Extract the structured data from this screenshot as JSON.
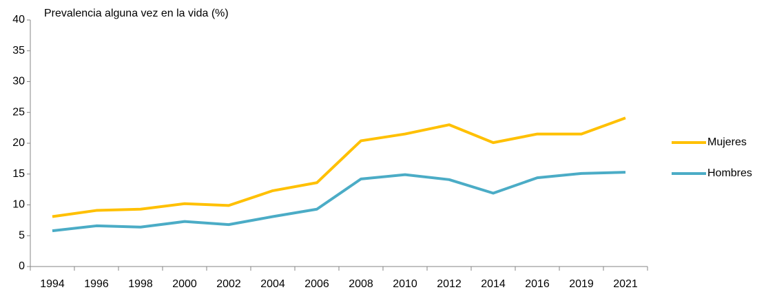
{
  "chart_data": {
    "type": "line",
    "title": "Prevalencia alguna vez en la vida (%)",
    "categories": [
      "1994",
      "1996",
      "1998",
      "2000",
      "2002",
      "2004",
      "2006",
      "2008",
      "2010",
      "2012",
      "2014",
      "2016",
      "2019",
      "2021"
    ],
    "series": [
      {
        "name": "Mujeres",
        "color": "#FFC000",
        "values": [
          8.1,
          9.1,
          9.3,
          10.2,
          9.9,
          12.3,
          13.6,
          20.4,
          21.5,
          23.0,
          20.1,
          21.5,
          21.5,
          24.1
        ]
      },
      {
        "name": "Hombres",
        "color": "#4BACC6",
        "values": [
          5.8,
          6.6,
          6.4,
          7.3,
          6.8,
          8.1,
          9.3,
          14.2,
          14.9,
          14.1,
          11.9,
          14.4,
          15.1,
          15.3
        ]
      }
    ],
    "ylim": [
      0,
      40
    ],
    "yticks": [
      0,
      5,
      10,
      15,
      20,
      25,
      30,
      35,
      40
    ],
    "grid": false,
    "legend": "right"
  }
}
